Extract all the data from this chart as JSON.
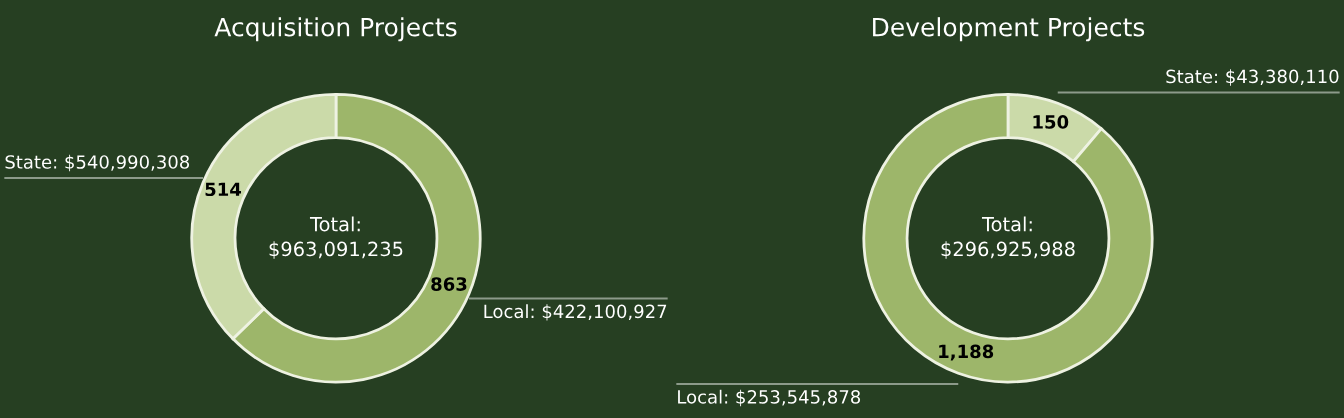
{
  "chart_data": [
    {
      "type": "donut",
      "title": "Acquisition Projects",
      "categories": [
        "Local: $422,100,927",
        "State: $540,990,308"
      ],
      "values": [
        863,
        514
      ],
      "value_labels": [
        "863",
        "514"
      ],
      "colors": [
        "#9db66a",
        "#cbdaa9"
      ],
      "annotations": [
        "Total:\n$963,091,235"
      ]
    },
    {
      "type": "donut",
      "title": "Development Projects",
      "categories": [
        "State: $43,380,110",
        "Local: $253,545,878"
      ],
      "values": [
        150,
        1188
      ],
      "value_labels": [
        "150",
        "1,188"
      ],
      "colors": [
        "#cbdaa9",
        "#9db66a"
      ],
      "annotations": [
        "Total:\n$296,925,988"
      ]
    }
  ]
}
